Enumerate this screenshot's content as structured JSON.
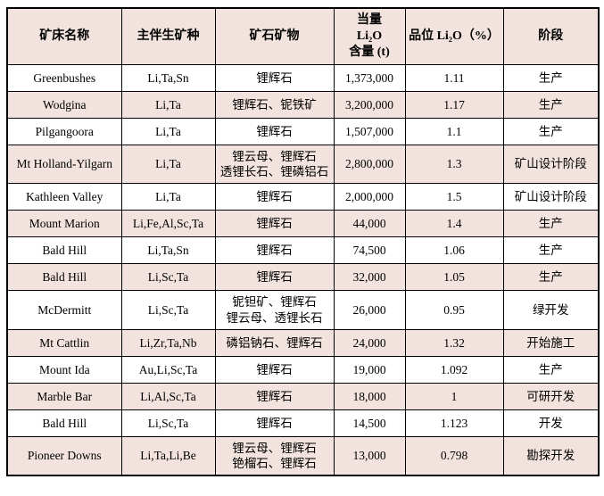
{
  "colors": {
    "row_shade": "#f2e3de",
    "border": "#000000",
    "text": "#000000",
    "page_background": "#ffffff"
  },
  "table": {
    "columns": [
      {
        "key": "name",
        "label": "矿床名称"
      },
      {
        "key": "assoc",
        "label": "主伴生矿种"
      },
      {
        "key": "minerals",
        "label": "矿石矿物"
      },
      {
        "key": "li2o",
        "label": "当量\nLi₂O\n含量 (t)"
      },
      {
        "key": "grade",
        "label": "品位 Li₂O（%）"
      },
      {
        "key": "stage",
        "label": "阶段"
      }
    ],
    "rows": [
      {
        "name": "Greenbushes",
        "assoc": "Li,Ta,Sn",
        "minerals": "锂辉石",
        "li2o": "1,373,000",
        "grade": "1.11",
        "stage": "生产"
      },
      {
        "name": "Wodgina",
        "assoc": "Li,Ta",
        "minerals": "锂辉石、铌铁矿",
        "li2o": "3,200,000",
        "grade": "1.17",
        "stage": "生产"
      },
      {
        "name": "Pilgangoora",
        "assoc": "Li,Ta",
        "minerals": "锂辉石",
        "li2o": "1,507,000",
        "grade": "1.1",
        "stage": "生产"
      },
      {
        "name": "Mt Holland-Yilgarn",
        "assoc": "Li,Ta",
        "minerals": "锂云母、锂辉石\n透锂长石、锂磷铝石",
        "li2o": "2,800,000",
        "grade": "1.3",
        "stage": "矿山设计阶段"
      },
      {
        "name": "Kathleen Valley",
        "assoc": "Li,Ta",
        "minerals": "锂辉石",
        "li2o": "2,000,000",
        "grade": "1.5",
        "stage": "矿山设计阶段"
      },
      {
        "name": "Mount Marion",
        "assoc": "Li,Fe,Al,Sc,Ta",
        "minerals": "锂辉石",
        "li2o": "44,000",
        "grade": "1.4",
        "stage": "生产"
      },
      {
        "name": "Bald Hill",
        "assoc": "Li,Ta,Sn",
        "minerals": "锂辉石",
        "li2o": "74,500",
        "grade": "1.06",
        "stage": "生产"
      },
      {
        "name": "Bald Hill",
        "assoc": "Li,Sc,Ta",
        "minerals": "锂辉石",
        "li2o": "32,000",
        "grade": "1.05",
        "stage": "生产"
      },
      {
        "name": "McDermitt",
        "assoc": "Li,Sc,Ta",
        "minerals": "铌钽矿、锂辉石\n锂云母、透锂长石",
        "li2o": "26,000",
        "grade": "0.95",
        "stage": "绿开发"
      },
      {
        "name": "Mt Cattlin",
        "assoc": "Li,Zr,Ta,Nb",
        "minerals": "磷铝钠石、锂辉石",
        "li2o": "24,000",
        "grade": "1.32",
        "stage": "开始施工"
      },
      {
        "name": "Mount Ida",
        "assoc": "Au,Li,Sc,Ta",
        "minerals": "锂辉石",
        "li2o": "19,000",
        "grade": "1.092",
        "stage": "生产"
      },
      {
        "name": "Marble Bar",
        "assoc": "Li,Al,Sc,Ta",
        "minerals": "锂辉石",
        "li2o": "18,000",
        "grade": "1",
        "stage": "可研开发"
      },
      {
        "name": "Bald Hill",
        "assoc": "Li,Sc,Ta",
        "minerals": "锂辉石",
        "li2o": "14,500",
        "grade": "1.123",
        "stage": "开发"
      },
      {
        "name": "Pioneer Downs",
        "assoc": "Li,Ta,Li,Be",
        "minerals": "锂云母、锂辉石\n铯榴石、锂辉石",
        "li2o": "13,000",
        "grade": "0.798",
        "stage": "勘探开发"
      }
    ]
  }
}
